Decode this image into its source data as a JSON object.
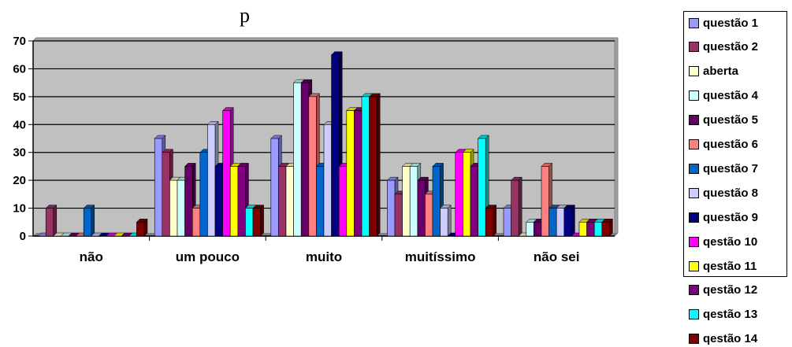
{
  "chart_data": {
    "type": "bar",
    "title": "p",
    "xlabel": "",
    "ylabel": "",
    "ylim": [
      0,
      70
    ],
    "yticks": [
      0,
      10,
      20,
      30,
      40,
      50,
      60,
      70
    ],
    "grid": true,
    "legend_position": "right",
    "plot_background": "#c0c0c0",
    "categories": [
      "não",
      "um pouco",
      "muito",
      "muitíssimo",
      "não sei"
    ],
    "series": [
      {
        "name": "questão 1",
        "color": "#9999ff",
        "values": [
          0,
          35,
          35,
          20,
          10
        ]
      },
      {
        "name": "questão 2",
        "color": "#993366",
        "values": [
          10,
          30,
          25,
          15,
          20
        ]
      },
      {
        "name": "aberta",
        "color": "#ffffcc",
        "values": [
          0,
          20,
          25,
          25,
          0
        ]
      },
      {
        "name": "questão 4",
        "color": "#ccffff",
        "values": [
          0,
          20,
          55,
          25,
          5
        ]
      },
      {
        "name": "questão 5",
        "color": "#660066",
        "values": [
          0,
          25,
          55,
          20,
          5
        ]
      },
      {
        "name": "questão 6",
        "color": "#ff8080",
        "values": [
          0,
          10,
          50,
          15,
          25
        ]
      },
      {
        "name": "questão 7",
        "color": "#0066cc",
        "values": [
          10,
          30,
          25,
          25,
          10
        ]
      },
      {
        "name": "questão 8",
        "color": "#ccccff",
        "values": [
          0,
          40,
          40,
          10,
          10
        ]
      },
      {
        "name": "questão 9",
        "color": "#000080",
        "values": [
          0,
          25,
          65,
          0,
          10
        ]
      },
      {
        "name": "qestão 10",
        "color": "#ff00ff",
        "values": [
          0,
          45,
          25,
          30,
          0
        ]
      },
      {
        "name": "qestão 11",
        "color": "#ffff00",
        "values": [
          0,
          25,
          45,
          30,
          5
        ]
      },
      {
        "name": "qestão 12",
        "color": "#800080",
        "values": [
          0,
          25,
          45,
          25,
          5
        ]
      },
      {
        "name": "qestão 13",
        "color": "#00ffff",
        "values": [
          0,
          10,
          50,
          35,
          5
        ]
      },
      {
        "name": "qestão 14",
        "color": "#800000",
        "values": [
          5,
          10,
          50,
          10,
          5
        ]
      }
    ]
  }
}
